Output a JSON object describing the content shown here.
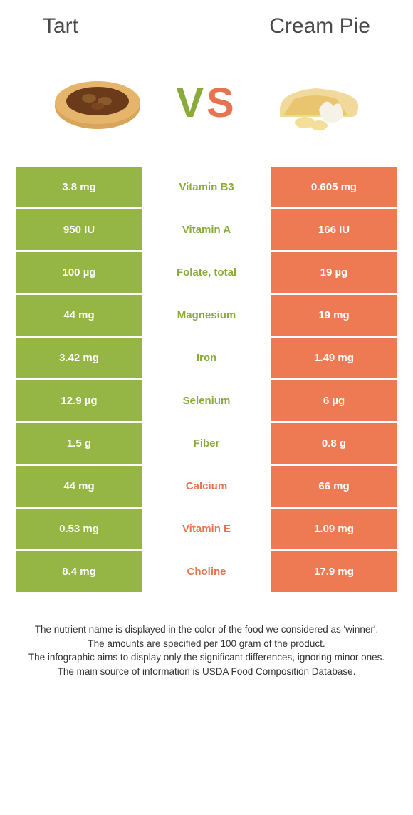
{
  "colors": {
    "left_bg": "#95b544",
    "right_bg": "#ed7a52",
    "left_text": "#8aaa3b",
    "right_text": "#e8744f",
    "title_text": "#4a4a4a",
    "foot_text": "#333333"
  },
  "header": {
    "left": "Tart",
    "right": "Cream Pie"
  },
  "vs": {
    "v": "V",
    "s": "S"
  },
  "rows": [
    {
      "left": "3.8 mg",
      "name": "Vitamin B3",
      "right": "0.605 mg",
      "winner": "left"
    },
    {
      "left": "950 IU",
      "name": "Vitamin A",
      "right": "166 IU",
      "winner": "left"
    },
    {
      "left": "100 µg",
      "name": "Folate, total",
      "right": "19 µg",
      "winner": "left"
    },
    {
      "left": "44 mg",
      "name": "Magnesium",
      "right": "19 mg",
      "winner": "left"
    },
    {
      "left": "3.42 mg",
      "name": "Iron",
      "right": "1.49 mg",
      "winner": "left"
    },
    {
      "left": "12.9 µg",
      "name": "Selenium",
      "right": "6 µg",
      "winner": "left"
    },
    {
      "left": "1.5 g",
      "name": "Fiber",
      "right": "0.8 g",
      "winner": "left"
    },
    {
      "left": "44 mg",
      "name": "Calcium",
      "right": "66 mg",
      "winner": "right"
    },
    {
      "left": "0.53 mg",
      "name": "Vitamin E",
      "right": "1.09 mg",
      "winner": "right"
    },
    {
      "left": "8.4 mg",
      "name": "Choline",
      "right": "17.9 mg",
      "winner": "right"
    }
  ],
  "footnotes": [
    "The nutrient name is displayed in the color of the food we considered as 'winner'.",
    "The amounts are specified per 100 gram of the product.",
    "The infographic aims to display only the significant differences, ignoring minor ones.",
    "The main source of information is USDA Food Composition Database."
  ]
}
